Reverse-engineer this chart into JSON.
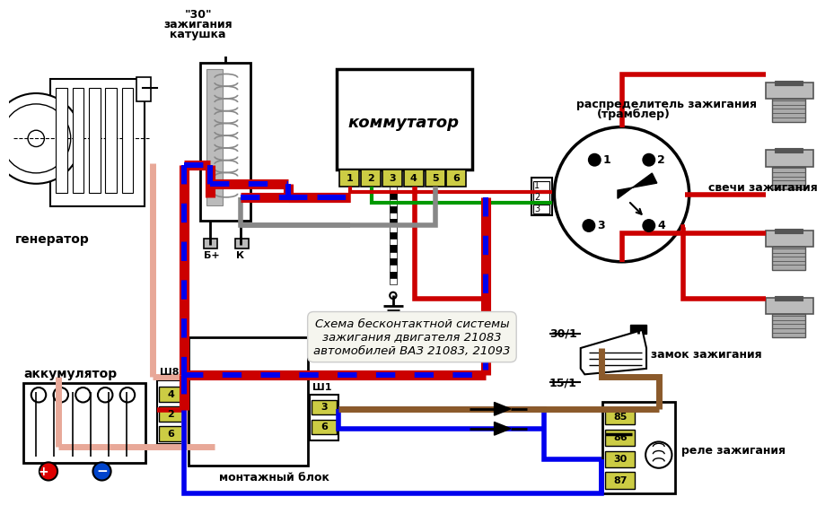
{
  "bg": "#ffffff",
  "red": "#cc0000",
  "blue": "#0000ee",
  "pink": "#e8a898",
  "brown": "#8B5A2B",
  "green": "#009900",
  "black": "#000000",
  "gray": "#888888",
  "lgray": "#bbbbbb",
  "dgray": "#555555",
  "ygreen": "#cccc44",
  "white_ish": "#f8f8f0",
  "title": "Схема бесконтактной системы\nзажигания двигателя 21083\nавтомобилей ВАЗ 21083, 21093",
  "lbl_gen": "генератор",
  "lbl_bat": "аккумулятор",
  "lbl_coil_1": "катушка",
  "lbl_coil_2": "зажигания",
  "lbl_coil_3": "\"30\"",
  "lbl_comm": "коммутатор",
  "lbl_dist_1": "распределитель зажигания",
  "lbl_dist_2": "(трамблер)",
  "lbl_sparks": "свечи зажигания",
  "lbl_block": "монтажный блок",
  "lbl_lock": "замок зажигания",
  "lbl_relay": "реле зажигания",
  "lbl_sh8": "Ш8",
  "lbl_sh1": "Ш1",
  "lbl_bplus": "Б+",
  "lbl_k": "К",
  "lbl_301": "30/1",
  "lbl_151": "15/1"
}
